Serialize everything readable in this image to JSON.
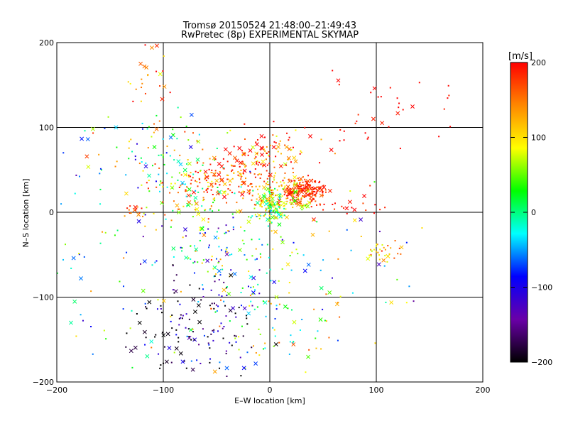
{
  "chart_data": {
    "type": "scatter",
    "title": "Tromsø 20150524 21:48:00–21:49:43",
    "subtitle": "RwPretec (8p) EXPERIMENTAL SKYMAP",
    "xlabel": "E–W location [km]",
    "ylabel": "N–S location [km]",
    "xlim": [
      -200,
      200
    ],
    "ylim": [
      -200,
      200
    ],
    "xticks": [
      -200,
      -100,
      0,
      100,
      200
    ],
    "yticks": [
      -200,
      -100,
      0,
      100,
      200
    ],
    "xtick_labels": [
      "−200",
      "−100",
      "0",
      "100",
      "200"
    ],
    "ytick_labels": [
      "−200",
      "−100",
      "0",
      "100",
      "200"
    ],
    "grid": true,
    "colorbar": {
      "label": "[m/s]",
      "min": -200,
      "max": 200,
      "ticks": [
        200,
        100,
        0,
        -100,
        -200
      ],
      "tick_labels": [
        "200",
        "100",
        "0",
        "−100",
        "−200"
      ],
      "colormap": [
        "#000000",
        "#6a00a8",
        "#0000ff",
        "#00ffff",
        "#00ff00",
        "#ffff00",
        "#ff8800",
        "#ff0000"
      ]
    },
    "clusters": [
      {
        "cx": 30,
        "cy": 25,
        "sx": 12,
        "sy": 8,
        "n": 200,
        "v": 180,
        "dv": 25
      },
      {
        "cx": 10,
        "cy": 20,
        "sx": 12,
        "sy": 14,
        "n": 110,
        "v": 90,
        "dv": 60
      },
      {
        "cx": 0,
        "cy": 5,
        "sx": 8,
        "sy": 10,
        "n": 90,
        "v": 40,
        "dv": 80
      },
      {
        "cx": -40,
        "cy": 40,
        "sx": 25,
        "sy": 15,
        "n": 140,
        "v": 150,
        "dv": 60
      },
      {
        "cx": -80,
        "cy": 30,
        "sx": 25,
        "sy": 25,
        "n": 120,
        "v": 80,
        "dv": 120
      },
      {
        "cx": -20,
        "cy": 55,
        "sx": 20,
        "sy": 20,
        "n": 60,
        "v": 190,
        "dv": 20
      },
      {
        "cx": 10,
        "cy": 75,
        "sx": 20,
        "sy": 15,
        "n": 50,
        "v": 150,
        "dv": 80
      },
      {
        "cx": -120,
        "cy": 80,
        "sx": 40,
        "sy": 25,
        "n": 70,
        "v": 40,
        "dv": 150
      },
      {
        "cx": -110,
        "cy": 160,
        "sx": 15,
        "sy": 20,
        "n": 25,
        "v": 160,
        "dv": 80
      },
      {
        "cx": -40,
        "cy": -40,
        "sx": 30,
        "sy": 30,
        "n": 130,
        "v": 0,
        "dv": 150
      },
      {
        "cx": -60,
        "cy": -130,
        "sx": 30,
        "sy": 30,
        "n": 110,
        "v": -150,
        "dv": 100
      },
      {
        "cx": 0,
        "cy": -130,
        "sx": 35,
        "sy": 35,
        "n": 90,
        "v": 40,
        "dv": 130
      },
      {
        "cx": -150,
        "cy": -80,
        "sx": 40,
        "sy": 60,
        "n": 60,
        "v": 0,
        "dv": 150
      },
      {
        "cx": 110,
        "cy": -45,
        "sx": 10,
        "sy": 6,
        "n": 30,
        "v": 130,
        "dv": 60
      },
      {
        "cx": 100,
        "cy": 120,
        "sx": 40,
        "sy": 40,
        "n": 40,
        "v": 200,
        "dv": 20
      },
      {
        "cx": 70,
        "cy": -60,
        "sx": 40,
        "sy": 40,
        "n": 40,
        "v": 0,
        "dv": 150
      },
      {
        "cx": -130,
        "cy": 3,
        "sx": 8,
        "sy": 4,
        "n": 15,
        "v": 170,
        "dv": 40
      },
      {
        "cx": 80,
        "cy": 5,
        "sx": 15,
        "sy": 5,
        "n": 20,
        "v": 190,
        "dv": 20
      },
      {
        "cx": -100,
        "cy": -150,
        "sx": 20,
        "sy": 25,
        "n": 40,
        "v": -190,
        "dv": 20
      }
    ]
  }
}
